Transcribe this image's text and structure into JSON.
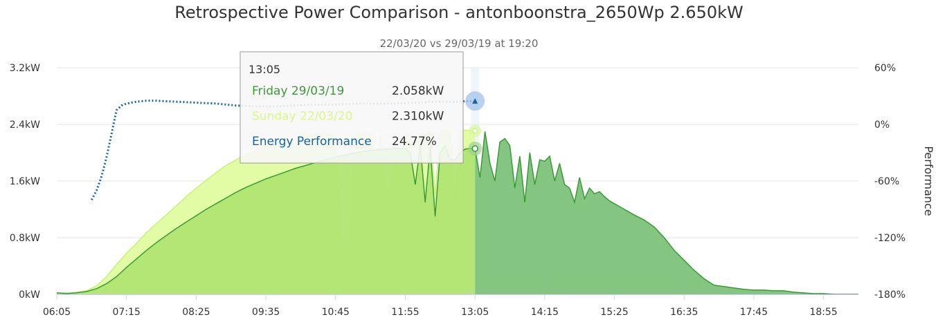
{
  "chart_data": {
    "type": "area",
    "title": "Retrospective Power Comparison - antonboonstra_2650Wp 2.650kW",
    "subtitle": "22/03/20 vs 29/03/19 at 19:20",
    "x_ticks": [
      "06:05",
      "07:15",
      "08:25",
      "09:35",
      "10:45",
      "11:55",
      "13:05",
      "14:15",
      "15:25",
      "16:35",
      "17:45",
      "18:55"
    ],
    "x_range": [
      "06:05",
      "19:30"
    ],
    "y_left": {
      "ticks": [
        "0kW",
        "0.8kW",
        "1.6kW",
        "2.4kW",
        "3.2kW"
      ],
      "range": [
        0,
        3.2
      ],
      "unit": "kW"
    },
    "y_right": {
      "label": "Performance",
      "ticks": [
        "-180%",
        "-120%",
        "-60%",
        "0%",
        "60%"
      ],
      "range": [
        -180,
        60
      ],
      "unit": "%"
    },
    "grid": true,
    "series": [
      {
        "name": "Sunday 22/03/20",
        "axis": "left",
        "color": "#dcf890",
        "x": [
          "06:05",
          "06:15",
          "06:25",
          "06:35",
          "06:45",
          "06:55",
          "07:05",
          "07:15",
          "07:25",
          "07:35",
          "07:45",
          "07:55",
          "08:05",
          "08:15",
          "08:25",
          "08:35",
          "08:45",
          "08:55",
          "09:05",
          "09:15",
          "09:25",
          "09:35",
          "09:45",
          "09:55",
          "10:05",
          "10:15",
          "10:25",
          "10:35",
          "10:40",
          "10:45",
          "10:50",
          "10:55",
          "11:00",
          "11:05",
          "11:10",
          "11:15",
          "11:20",
          "11:25",
          "11:30",
          "11:35",
          "11:40",
          "11:45",
          "11:50",
          "11:55",
          "12:00",
          "12:05",
          "12:10",
          "12:15",
          "12:20",
          "12:25",
          "12:30",
          "12:35",
          "12:40",
          "12:45",
          "12:50",
          "12:55",
          "13:00",
          "13:05"
        ],
        "values": [
          0.02,
          0.02,
          0.03,
          0.05,
          0.12,
          0.25,
          0.42,
          0.58,
          0.72,
          0.87,
          1.0,
          1.12,
          1.25,
          1.38,
          1.5,
          1.61,
          1.72,
          1.82,
          1.9,
          1.97,
          2.03,
          2.08,
          2.13,
          2.17,
          2.2,
          2.23,
          2.25,
          2.27,
          2.26,
          2.22,
          0.74,
          0.75,
          0.85,
          2.28,
          2.26,
          2.3,
          2.28,
          1.75,
          2.25,
          1.45,
          1.5,
          1.95,
          1.95,
          2.2,
          2.26,
          1.85,
          2.25,
          2.28,
          2.3,
          1.4,
          2.3,
          2.31,
          2.3,
          1.3,
          2.32,
          2.32,
          2.31,
          2.31
        ]
      },
      {
        "name": "Friday 29/03/19",
        "axis": "left",
        "color": "#72c061",
        "x": [
          "06:05",
          "06:15",
          "06:25",
          "06:35",
          "06:45",
          "06:55",
          "07:05",
          "07:15",
          "07:25",
          "07:35",
          "07:45",
          "07:55",
          "08:05",
          "08:15",
          "08:25",
          "08:35",
          "08:45",
          "08:55",
          "09:05",
          "09:15",
          "09:25",
          "09:35",
          "09:45",
          "09:55",
          "10:05",
          "10:15",
          "10:25",
          "10:35",
          "10:45",
          "10:55",
          "11:05",
          "11:15",
          "11:25",
          "11:35",
          "11:45",
          "11:55",
          "12:00",
          "12:05",
          "12:10",
          "12:15",
          "12:20",
          "12:25",
          "12:30",
          "12:35",
          "12:40",
          "12:45",
          "12:50",
          "12:55",
          "13:00",
          "13:05",
          "13:10",
          "13:15",
          "13:20",
          "13:25",
          "13:30",
          "13:35",
          "13:40",
          "13:45",
          "13:50",
          "13:55",
          "14:00",
          "14:05",
          "14:10",
          "14:15",
          "14:20",
          "14:25",
          "14:30",
          "14:35",
          "14:40",
          "14:45",
          "14:50",
          "14:55",
          "15:00",
          "15:05",
          "15:10",
          "15:15",
          "15:20",
          "15:25",
          "15:35",
          "15:45",
          "15:55",
          "16:05",
          "16:15",
          "16:25",
          "16:35",
          "16:45",
          "16:55",
          "17:05",
          "17:15",
          "17:25",
          "17:35",
          "17:45",
          "17:55",
          "18:05",
          "18:15",
          "18:25",
          "18:35",
          "18:45",
          "18:55",
          "19:05",
          "19:15",
          "19:30"
        ],
        "values": [
          0.02,
          0.01,
          0.02,
          0.04,
          0.08,
          0.15,
          0.25,
          0.38,
          0.5,
          0.62,
          0.73,
          0.83,
          0.93,
          1.02,
          1.11,
          1.2,
          1.28,
          1.36,
          1.44,
          1.51,
          1.57,
          1.63,
          1.68,
          1.73,
          1.78,
          1.82,
          1.86,
          1.9,
          1.94,
          1.97,
          2.0,
          2.02,
          2.04,
          2.05,
          2.06,
          2.06,
          2.0,
          1.55,
          2.1,
          1.3,
          2.08,
          1.1,
          2.0,
          2.1,
          1.9,
          1.9,
          2.0,
          2.05,
          2.06,
          2.06,
          1.65,
          2.3,
          1.85,
          1.6,
          2.15,
          2.2,
          2.1,
          1.5,
          1.95,
          1.3,
          2.0,
          1.55,
          1.9,
          1.88,
          1.95,
          1.6,
          1.85,
          1.55,
          1.5,
          1.3,
          1.65,
          1.35,
          1.5,
          1.42,
          1.45,
          1.38,
          1.32,
          1.28,
          1.2,
          1.12,
          1.05,
          0.95,
          0.8,
          0.62,
          0.48,
          0.34,
          0.22,
          0.13,
          0.11,
          0.09,
          0.07,
          0.06,
          0.06,
          0.05,
          0.05,
          0.03,
          0.02,
          0.01,
          0.01,
          0.0,
          0.0,
          0.0
        ]
      },
      {
        "name": "Energy Performance",
        "axis": "right",
        "color": "#1464a5",
        "style": "dotted",
        "x": [
          "06:40",
          "06:45",
          "06:50",
          "06:55",
          "07:00",
          "07:05",
          "07:10",
          "07:15",
          "07:25",
          "07:35",
          "07:45",
          "08:05",
          "08:25",
          "08:45",
          "09:05",
          "09:25",
          "09:45",
          "10:05",
          "10:25",
          "10:45",
          "11:05",
          "11:25",
          "11:45",
          "12:05",
          "12:25",
          "12:45",
          "13:05"
        ],
        "values": [
          -80,
          -70,
          -55,
          -35,
          -10,
          15,
          20,
          22,
          24,
          25,
          25,
          24,
          23,
          22,
          20,
          19,
          19,
          20,
          21,
          21,
          22,
          22,
          22,
          23,
          24,
          24,
          24.77
        ]
      }
    ]
  },
  "tooltip": {
    "time": "13:05",
    "rows": [
      {
        "label": "Friday 29/03/19",
        "value": "2.058kW",
        "color": "#3c9a38"
      },
      {
        "label": "Sunday 22/03/20",
        "value": "2.310kW",
        "color": "#d6f88c"
      },
      {
        "label": "Energy Performance",
        "value": "24.77%",
        "color": "#1464a5"
      }
    ]
  },
  "hover": {
    "time": "13:05",
    "friday_value": 2.058,
    "sunday_value": 2.31,
    "performance_value": 24.77
  },
  "colors": {
    "grid": "#e6e6e6",
    "axis": "#ccd6eb",
    "friday_past": "#b1e572",
    "friday_future": "#84c582",
    "friday_line": "#3a9a36",
    "sunday_fill": "#e0fca0",
    "sunday_line": "#c8f07a",
    "performance": "#1464a5"
  }
}
